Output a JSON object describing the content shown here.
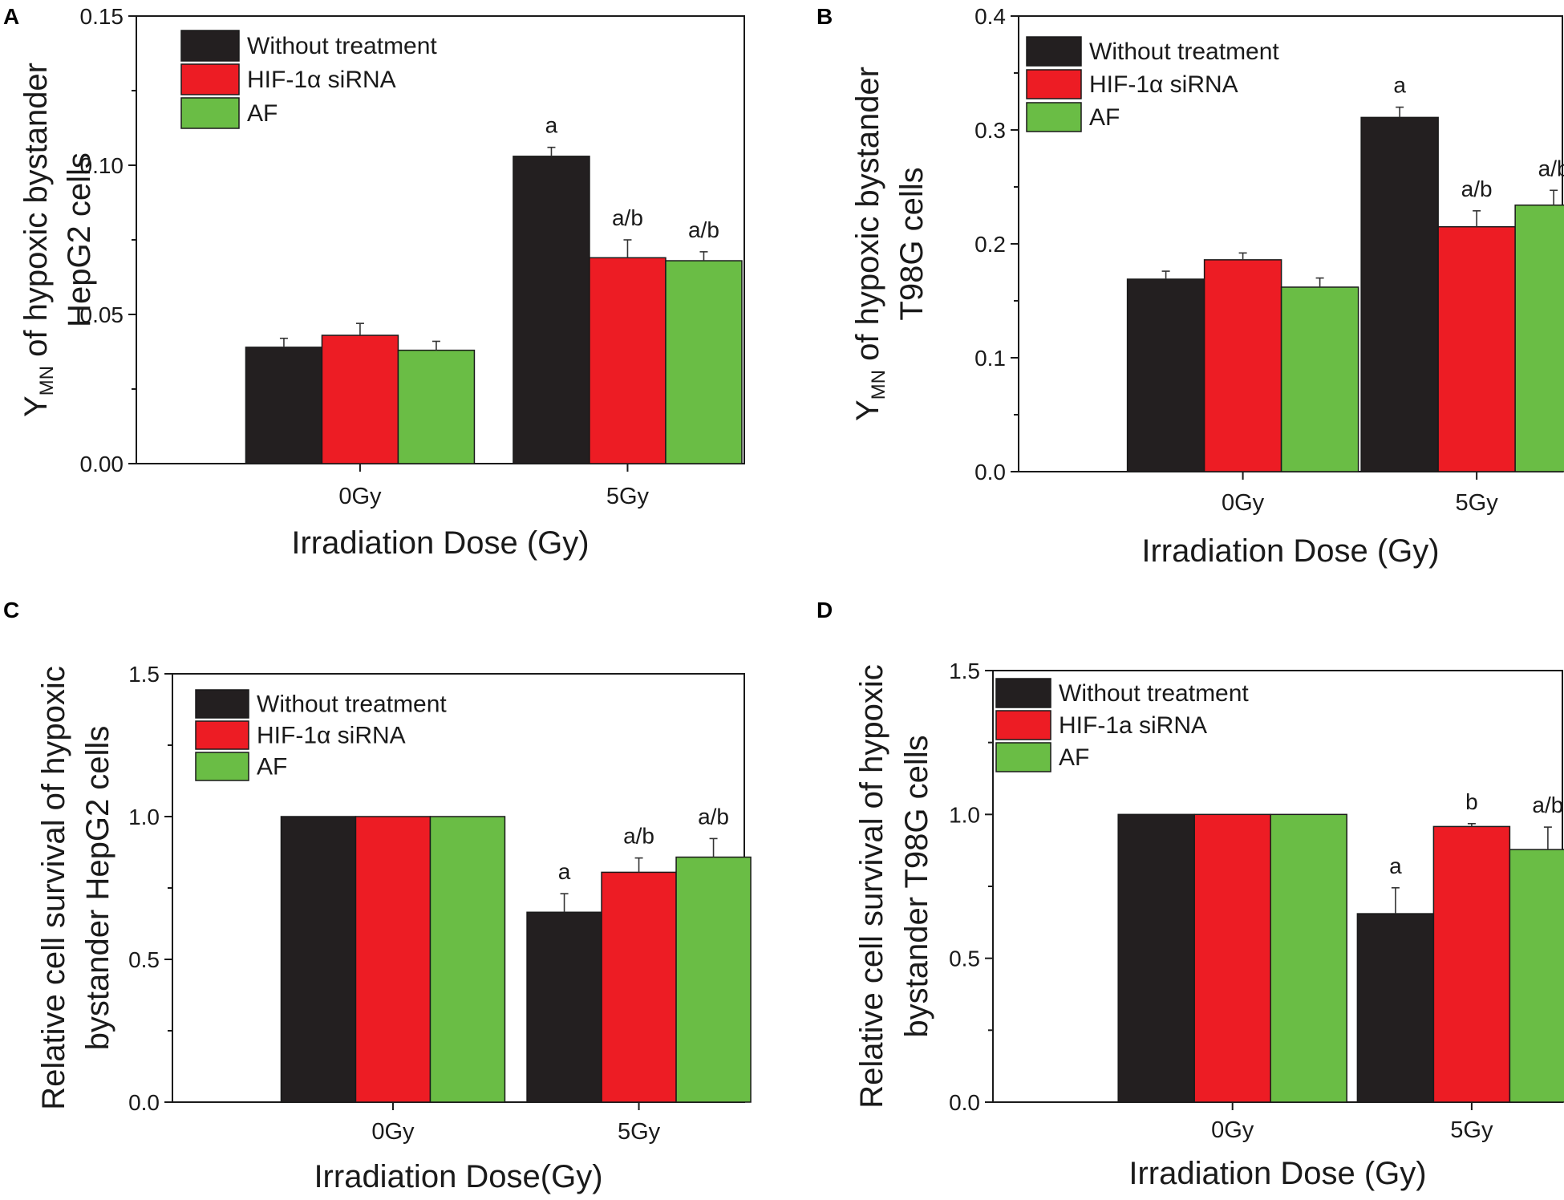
{
  "series_names": [
    "Without treatment",
    "HIF-1α siRNA",
    "AF"
  ],
  "colors": [
    "#231f20",
    "#ed1c24",
    "#6abd45"
  ],
  "chart_data": [
    {
      "id": "A",
      "type": "bar",
      "panel_label": "A",
      "categories": [
        "0Gy",
        "5Gy"
      ],
      "series": [
        {
          "name": "Without treatment",
          "values": [
            0.039,
            0.103
          ],
          "errors": [
            0.003,
            0.003
          ]
        },
        {
          "name": "HIF-1α siRNA",
          "values": [
            0.043,
            0.069
          ],
          "errors": [
            0.004,
            0.006
          ]
        },
        {
          "name": "AF",
          "values": [
            0.038,
            0.068
          ],
          "errors": [
            0.003,
            0.003
          ]
        }
      ],
      "annotations": [
        [
          "",
          "a"
        ],
        [
          "",
          "a/b"
        ],
        [
          "",
          "a/b"
        ]
      ],
      "legend": [
        "Without treatment",
        "HIF-1α siRNA",
        "AF"
      ],
      "ylim": [
        0,
        0.15
      ],
      "yticks": [
        "0.00",
        "0.05",
        "0.10",
        "0.15"
      ],
      "ytick_values": [
        0,
        0.05,
        0.1,
        0.15
      ],
      "xlabel": "Irradiation Dose (Gy)",
      "ylabel_line1": "Y of hypoxic bystander",
      "ylabel_sub": "MN",
      "ylabel_line2": "HepG2 cells"
    },
    {
      "id": "B",
      "type": "bar",
      "panel_label": "B",
      "categories": [
        "0Gy",
        "5Gy"
      ],
      "series": [
        {
          "name": "Without treatment",
          "values": [
            0.169,
            0.311
          ],
          "errors": [
            0.007,
            0.009
          ]
        },
        {
          "name": "HIF-1α siRNA",
          "values": [
            0.186,
            0.215
          ],
          "errors": [
            0.006,
            0.014
          ]
        },
        {
          "name": "AF",
          "values": [
            0.162,
            0.234
          ],
          "errors": [
            0.008,
            0.013
          ]
        }
      ],
      "annotations": [
        [
          "",
          "a"
        ],
        [
          "",
          "a/b"
        ],
        [
          "",
          "a/b"
        ]
      ],
      "legend": [
        "Without treatment",
        "HIF-1α siRNA",
        "AF"
      ],
      "ylim": [
        0,
        0.4
      ],
      "yticks": [
        "0.0",
        "0.1",
        "0.2",
        "0.3",
        "0.4"
      ],
      "ytick_values": [
        0,
        0.1,
        0.2,
        0.3,
        0.4
      ],
      "xlabel": "Irradiation Dose (Gy)",
      "ylabel_line1": "Y of hypoxic bystander",
      "ylabel_sub": "MN",
      "ylabel_line2": "T98G cells"
    },
    {
      "id": "C",
      "type": "bar",
      "panel_label": "C",
      "categories": [
        "0Gy",
        "5Gy"
      ],
      "series": [
        {
          "name": "Without treatment",
          "values": [
            1.0,
            0.665
          ],
          "errors": [
            0,
            0.065
          ]
        },
        {
          "name": "HIF-1α siRNA",
          "values": [
            1.0,
            0.805
          ],
          "errors": [
            0,
            0.05
          ]
        },
        {
          "name": "AF",
          "values": [
            1.0,
            0.858
          ],
          "errors": [
            0,
            0.065
          ]
        }
      ],
      "annotations": [
        [
          "",
          "a"
        ],
        [
          "",
          "a/b"
        ],
        [
          "",
          "a/b"
        ]
      ],
      "legend": [
        "Without treatment",
        "HIF-1α siRNA",
        "AF"
      ],
      "ylim": [
        0,
        1.5
      ],
      "yticks": [
        "0.0",
        "0.5",
        "1.0",
        "1.5"
      ],
      "ytick_values": [
        0,
        0.5,
        1.0,
        1.5
      ],
      "xlabel": "Irradiation Dose(Gy)",
      "ylabel_line1": "Relative cell survival of hypoxic",
      "ylabel_sub": "",
      "ylabel_line2": "bystander HepG2 cells"
    },
    {
      "id": "D",
      "type": "bar",
      "panel_label": "D",
      "categories": [
        "0Gy",
        "5Gy"
      ],
      "series": [
        {
          "name": "Without treatment",
          "values": [
            1.0,
            0.655
          ],
          "errors": [
            0,
            0.09
          ]
        },
        {
          "name": "HIF-1a siRNA",
          "values": [
            1.0,
            0.958
          ],
          "errors": [
            0,
            0.01
          ]
        },
        {
          "name": "AF",
          "values": [
            1.0,
            0.878
          ],
          "errors": [
            0,
            0.078
          ]
        }
      ],
      "annotations": [
        [
          "",
          "a"
        ],
        [
          "",
          "b"
        ],
        [
          "",
          "a/b"
        ]
      ],
      "legend": [
        "Without treatment",
        "HIF-1a siRNA",
        "AF"
      ],
      "ylim": [
        0,
        1.5
      ],
      "yticks": [
        "0.0",
        "0.5",
        "1.0",
        "1.5"
      ],
      "ytick_values": [
        0,
        0.5,
        1.0,
        1.5
      ],
      "xlabel": "Irradiation Dose (Gy)",
      "ylabel_line1": "Relative cell survival of hypoxic",
      "ylabel_sub": "",
      "ylabel_line2": "bystander T98G cells"
    }
  ]
}
